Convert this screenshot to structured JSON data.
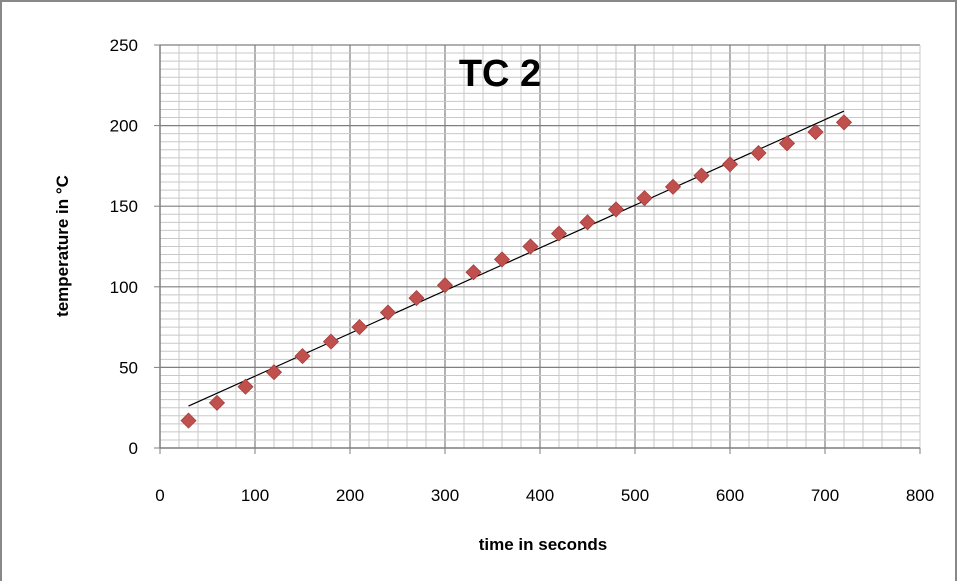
{
  "chart_data": {
    "type": "scatter",
    "title": "TC 2",
    "xlabel": "time in seconds",
    "ylabel": "temperature in °C",
    "xlim": [
      0,
      800
    ],
    "ylim": [
      0,
      250
    ],
    "x_ticks": [
      0,
      100,
      200,
      300,
      400,
      500,
      600,
      700,
      800
    ],
    "y_ticks": [
      0,
      50,
      100,
      150,
      200,
      250
    ],
    "x_tick_labels": [
      "0",
      "100",
      "200",
      "300",
      "400",
      "500",
      "600",
      "700",
      "800"
    ],
    "y_tick_labels": [
      "0",
      "50",
      "100",
      "150",
      "200",
      "250"
    ],
    "grid": true,
    "legend": "none",
    "marker": "diamond",
    "marker_color": "#c0504d",
    "trendline_color": "#000000",
    "series": [
      {
        "x": [
          30,
          60,
          90,
          120,
          150,
          180,
          210,
          240,
          270,
          300,
          330,
          360,
          390,
          420,
          450,
          480,
          510,
          540,
          570,
          600,
          630,
          660,
          690,
          720
        ],
        "y": [
          17,
          28,
          38,
          47,
          57,
          66,
          75,
          84,
          93,
          101,
          109,
          117,
          125,
          133,
          140,
          148,
          155,
          162,
          169,
          176,
          183,
          189,
          196,
          202
        ]
      }
    ],
    "trendline": {
      "x": [
        30,
        720
      ],
      "y": [
        26,
        209
      ]
    }
  }
}
